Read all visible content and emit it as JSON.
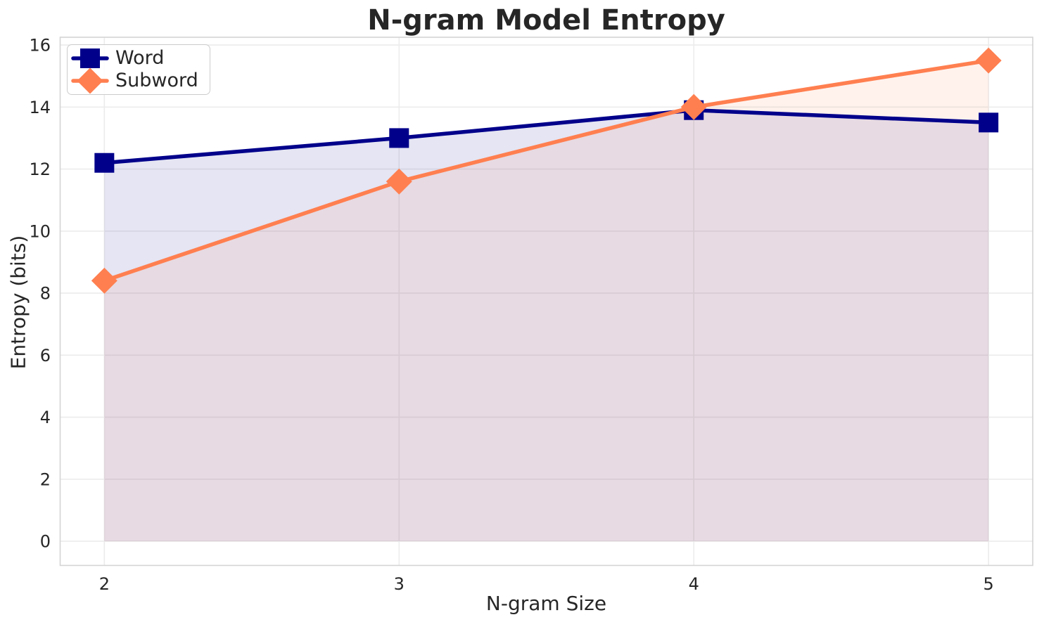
{
  "chart_data": {
    "type": "line",
    "title": "N-gram Model Entropy",
    "xlabel": "N-gram Size",
    "ylabel": "Entropy (bits)",
    "x": [
      2,
      3,
      4,
      5
    ],
    "series": [
      {
        "name": "Word",
        "values": [
          12.2,
          13.0,
          13.9,
          13.5
        ],
        "color": "#00008b",
        "marker": "square",
        "fill_to_zero": true
      },
      {
        "name": "Subword",
        "values": [
          8.4,
          11.6,
          14.0,
          15.5
        ],
        "color": "#ff7f50",
        "marker": "diamond",
        "fill_to_zero": true
      }
    ],
    "fill_alpha": 0.1,
    "line_width": 5.5,
    "xticks": [
      2,
      3,
      4,
      5
    ],
    "yticks": [
      0,
      2,
      4,
      6,
      8,
      10,
      12,
      14,
      16
    ],
    "xlim": [
      1.85,
      5.15
    ],
    "ylim": [
      -0.78,
      16.25
    ],
    "grid": true,
    "legend_position": "upper-left",
    "colors": {
      "text": "#262626",
      "grid": "#ececec",
      "spine": "#d4d4d4",
      "legend_border": "#cccccc",
      "background": "#ffffff"
    }
  }
}
